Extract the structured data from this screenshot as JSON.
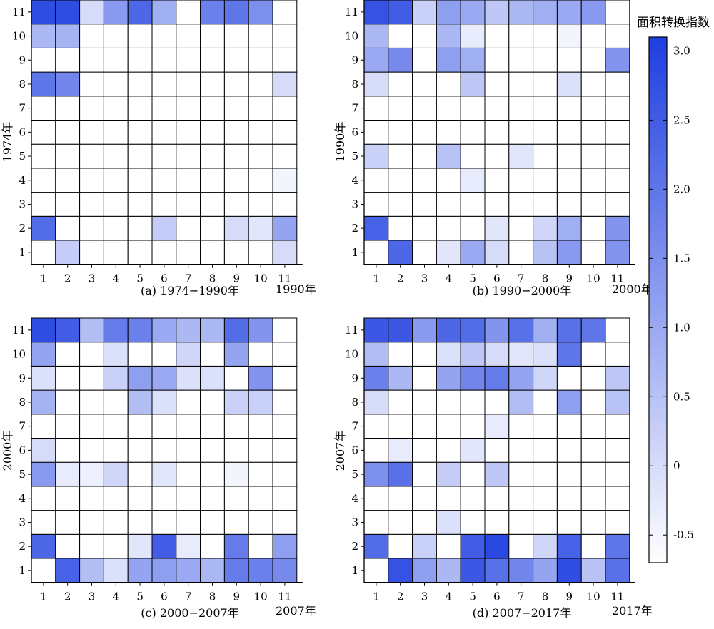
{
  "colorbar": {
    "title": "面积转换指数",
    "ticks": [
      3.0,
      2.5,
      2.0,
      1.5,
      1.0,
      0.5,
      0,
      -0.5
    ],
    "tick_labels": [
      "3.0",
      "2.5",
      "2.0",
      "1.5",
      "1.0",
      "0.5",
      "0",
      "-0.5"
    ],
    "vmin": -0.7,
    "vmax": 3.1,
    "color_low": "#ffffff",
    "color_high": "#1e3ee0"
  },
  "chart_data": [
    {
      "type": "heatmap",
      "title": "(a) 1974−1990年",
      "xlabel": "1990年",
      "ylabel": "1974年",
      "x": [
        1,
        2,
        3,
        4,
        5,
        6,
        7,
        8,
        9,
        10,
        11
      ],
      "y": [
        1,
        2,
        3,
        4,
        5,
        6,
        7,
        8,
        9,
        10,
        11
      ],
      "values": [
        [
          -0.7,
          0.3,
          -0.7,
          -0.7,
          -0.7,
          -0.7,
          -0.7,
          -0.7,
          -0.7,
          -0.7,
          0.0
        ],
        [
          2.2,
          -0.7,
          -0.7,
          -0.7,
          -0.7,
          0.3,
          -0.7,
          -0.7,
          0.0,
          -0.2,
          1.1
        ],
        [
          -0.7,
          -0.7,
          -0.7,
          -0.7,
          -0.7,
          -0.7,
          -0.7,
          -0.7,
          -0.7,
          -0.7,
          -0.7
        ],
        [
          -0.7,
          -0.7,
          -0.7,
          -0.7,
          -0.7,
          -0.7,
          -0.7,
          -0.7,
          -0.7,
          -0.7,
          -0.5
        ],
        [
          -0.7,
          -0.7,
          -0.7,
          -0.7,
          -0.7,
          -0.7,
          -0.7,
          -0.7,
          -0.7,
          -0.7,
          -0.7
        ],
        [
          -0.7,
          -0.7,
          -0.7,
          -0.7,
          -0.7,
          -0.7,
          -0.7,
          -0.7,
          -0.7,
          -0.7,
          -0.7
        ],
        [
          -0.7,
          -0.7,
          -0.7,
          -0.7,
          -0.7,
          -0.7,
          -0.7,
          -0.7,
          -0.7,
          -0.7,
          -0.7
        ],
        [
          2.0,
          1.7,
          -0.7,
          -0.7,
          -0.7,
          -0.7,
          -0.7,
          -0.7,
          -0.7,
          -0.7,
          0.0
        ],
        [
          -0.7,
          -0.7,
          -0.7,
          -0.7,
          -0.7,
          -0.7,
          -0.7,
          -0.7,
          -0.7,
          -0.7,
          -0.7
        ],
        [
          0.7,
          0.8,
          -0.7,
          -0.7,
          -0.7,
          -0.7,
          -0.7,
          -0.7,
          -0.7,
          -0.7,
          -0.7
        ],
        [
          2.8,
          2.8,
          0.0,
          1.3,
          2.3,
          0.9,
          -0.7,
          1.8,
          2.0,
          1.5,
          -0.7
        ]
      ]
    },
    {
      "type": "heatmap",
      "title": "(b) 1990−2000年",
      "xlabel": "2000年",
      "ylabel": "1990年",
      "x": [
        1,
        2,
        3,
        4,
        5,
        6,
        7,
        8,
        9,
        10,
        11
      ],
      "y": [
        1,
        2,
        3,
        4,
        5,
        6,
        7,
        8,
        9,
        10,
        11
      ],
      "values": [
        [
          -0.7,
          2.3,
          -0.7,
          -0.2,
          1.0,
          0.0,
          -0.7,
          0.5,
          1.3,
          -0.7,
          1.4
        ],
        [
          2.4,
          -0.7,
          -0.7,
          -0.7,
          -0.7,
          -0.2,
          -0.7,
          0.1,
          0.9,
          -0.7,
          1.4
        ],
        [
          -0.7,
          -0.7,
          -0.7,
          -0.7,
          -0.7,
          -0.7,
          -0.7,
          -0.7,
          -0.7,
          -0.7,
          -0.7
        ],
        [
          -0.7,
          -0.7,
          -0.7,
          -0.7,
          -0.3,
          -0.7,
          -0.7,
          -0.7,
          -0.7,
          -0.7,
          -0.7
        ],
        [
          0.2,
          -0.7,
          -0.7,
          0.5,
          -0.7,
          -0.7,
          -0.2,
          -0.7,
          -0.7,
          -0.7,
          -0.7
        ],
        [
          -0.7,
          -0.7,
          -0.7,
          -0.7,
          -0.7,
          -0.7,
          -0.7,
          -0.7,
          -0.7,
          -0.7,
          -0.7
        ],
        [
          -0.7,
          -0.7,
          -0.7,
          -0.7,
          -0.7,
          -0.7,
          -0.7,
          -0.7,
          -0.7,
          -0.7,
          -0.7
        ],
        [
          0.0,
          -0.7,
          -0.7,
          -0.7,
          0.4,
          -0.7,
          -0.7,
          -0.7,
          -0.1,
          -0.7,
          -0.7
        ],
        [
          1.0,
          1.6,
          -0.7,
          1.2,
          0.9,
          -0.7,
          -0.7,
          -0.7,
          -0.7,
          -0.7,
          1.4
        ],
        [
          0.7,
          -0.7,
          -0.7,
          0.7,
          -0.3,
          -0.7,
          -0.7,
          -0.7,
          -0.5,
          -0.7,
          -0.7
        ],
        [
          2.7,
          2.5,
          0.2,
          1.2,
          1.0,
          0.4,
          0.7,
          0.9,
          1.0,
          1.3,
          -0.7
        ]
      ]
    },
    {
      "type": "heatmap",
      "title": "(c) 2000−2007年",
      "xlabel": "2007年",
      "ylabel": "2000年",
      "x": [
        1,
        2,
        3,
        4,
        5,
        6,
        7,
        8,
        9,
        10,
        11
      ],
      "y": [
        1,
        2,
        3,
        4,
        5,
        6,
        7,
        8,
        9,
        10,
        11
      ],
      "values": [
        [
          -0.7,
          2.4,
          0.6,
          -0.1,
          1.1,
          1.2,
          1.0,
          0.7,
          1.9,
          1.8,
          1.6
        ],
        [
          2.3,
          -0.7,
          -0.7,
          -0.7,
          -0.2,
          2.5,
          -0.3,
          -0.7,
          1.9,
          -0.7,
          1.2
        ],
        [
          -0.7,
          -0.7,
          -0.7,
          -0.7,
          -0.7,
          -0.7,
          -0.7,
          -0.7,
          -0.7,
          -0.7,
          -0.7
        ],
        [
          -0.7,
          -0.7,
          -0.7,
          -0.7,
          -0.7,
          -0.7,
          -0.7,
          -0.7,
          -0.7,
          -0.7,
          -0.7
        ],
        [
          1.3,
          -0.3,
          -0.4,
          0.1,
          -0.7,
          -0.2,
          -0.7,
          -0.7,
          -0.5,
          -0.7,
          -0.7
        ],
        [
          0.0,
          -0.7,
          -0.7,
          -0.7,
          -0.7,
          -0.7,
          -0.7,
          -0.7,
          -0.7,
          -0.7,
          -0.7
        ],
        [
          -0.7,
          -0.7,
          -0.7,
          -0.7,
          -0.7,
          -0.7,
          -0.7,
          -0.7,
          -0.7,
          -0.7,
          -0.7
        ],
        [
          0.8,
          -0.7,
          -0.7,
          -0.7,
          0.6,
          -0.1,
          -0.7,
          -0.7,
          0.2,
          0.2,
          -0.7
        ],
        [
          -0.1,
          -0.7,
          -0.7,
          0.2,
          1.2,
          1.0,
          -0.1,
          -0.1,
          -0.7,
          1.4,
          -0.7
        ],
        [
          1.1,
          -0.7,
          -0.7,
          -0.1,
          -0.7,
          -0.7,
          0.1,
          -0.7,
          1.1,
          -0.7,
          -0.7
        ],
        [
          2.8,
          2.5,
          0.6,
          1.9,
          1.8,
          1.0,
          0.7,
          0.7,
          2.2,
          1.4,
          -0.7
        ]
      ]
    },
    {
      "type": "heatmap",
      "title": "(d) 2007−2017年",
      "xlabel": "2017年",
      "ylabel": "2007年",
      "x": [
        1,
        2,
        3,
        4,
        5,
        6,
        7,
        8,
        9,
        10,
        11
      ],
      "y": [
        1,
        2,
        3,
        4,
        5,
        6,
        7,
        8,
        9,
        10,
        11
      ],
      "values": [
        [
          -0.7,
          2.7,
          1.2,
          0.7,
          2.6,
          2.1,
          1.7,
          1.1,
          2.8,
          0.5,
          2.1
        ],
        [
          2.2,
          -0.7,
          0.2,
          -0.7,
          2.5,
          2.9,
          -0.7,
          0.1,
          2.4,
          -0.7,
          2.0
        ],
        [
          -0.7,
          -0.7,
          -0.7,
          -0.1,
          -0.7,
          -0.7,
          -0.7,
          -0.7,
          -0.7,
          -0.7,
          -0.7
        ],
        [
          -0.7,
          -0.7,
          -0.7,
          -0.7,
          -0.7,
          -0.7,
          -0.7,
          -0.7,
          -0.7,
          -0.7,
          -0.7
        ],
        [
          1.5,
          2.1,
          -0.7,
          0.3,
          -0.7,
          0.4,
          -0.7,
          -0.7,
          -0.7,
          -0.7,
          -0.7
        ],
        [
          -0.7,
          -0.3,
          -0.7,
          -0.7,
          -0.2,
          -0.7,
          -0.7,
          -0.7,
          -0.7,
          -0.7,
          -0.7
        ],
        [
          -0.7,
          -0.7,
          -0.7,
          -0.7,
          -0.7,
          -0.3,
          -0.7,
          -0.7,
          -0.7,
          -0.7,
          -0.7
        ],
        [
          0.0,
          -0.7,
          -0.7,
          -0.7,
          -0.7,
          -0.7,
          0.6,
          -0.7,
          1.2,
          -0.7,
          0.5
        ],
        [
          1.8,
          0.7,
          -0.7,
          1.1,
          1.7,
          1.9,
          1.1,
          0.1,
          -0.7,
          -0.7,
          0.4
        ],
        [
          0.6,
          -0.7,
          -0.7,
          -0.1,
          0.4,
          0.0,
          -0.2,
          -0.1,
          2.0,
          -0.7,
          -0.7
        ],
        [
          2.6,
          2.6,
          1.3,
          2.3,
          2.2,
          1.4,
          2.1,
          0.9,
          2.1,
          2.0,
          -0.7
        ]
      ]
    }
  ]
}
